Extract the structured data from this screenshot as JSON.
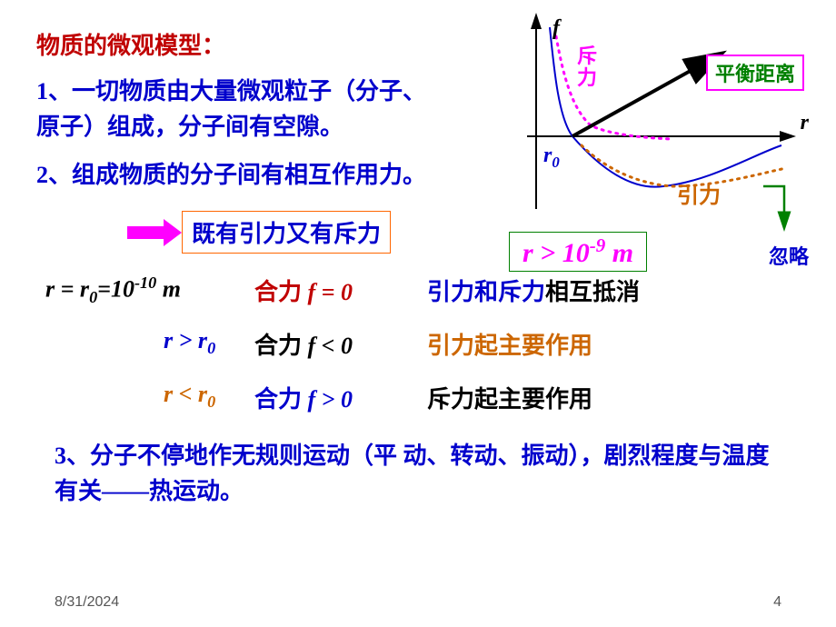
{
  "title": {
    "text": "物质的微观模型：",
    "color": "#c00000"
  },
  "point1": {
    "num": "1、",
    "numColor": "#0000cc",
    "text1": "一切物质由大量微观粒子（分子、",
    "text1Color": "#0000cc",
    "text2": "原子）组成，分子间有空隙。",
    "text2Color": "#0000cc"
  },
  "point2": {
    "num": "2、",
    "numColor": "#0000cc",
    "text": "组成物质的分子间有相互作用力。",
    "textColor": "#0000cc"
  },
  "boxText": {
    "text": "既有引力又有斥力",
    "color": "#0000cc",
    "borderColor": "#ff6600"
  },
  "rows": [
    {
      "col1Html": "r =  r<sub>0</sub>=10<sup>-10</sup> m",
      "col1Color": "#000000",
      "col2Pre": "合力 ",
      "col2PreColor": "#c00000",
      "col2Mid": "f  = 0",
      "col2MidColor": "#c00000",
      "col3a": "引力和斥力",
      "col3aColor": "#0000cc",
      "col3b": "相互抵消",
      "col3bColor": "#000000"
    },
    {
      "col1Html": "r > r<sub>0</sub>",
      "col1Color": "#0000cc",
      "col2Pre": "合力 ",
      "col2PreColor": "#000000",
      "col2Mid": "f  < 0",
      "col2MidColor": "#000000",
      "col3a": "引力起主要作用",
      "col3aColor": "#cc6600",
      "col3b": "",
      "col3bColor": "#000000"
    },
    {
      "col1Html": "r < r<sub>0</sub>",
      "col1Color": "#cc6600",
      "col2Pre": "合力 ",
      "col2PreColor": "#0000cc",
      "col2Mid": "f  > 0",
      "col2MidColor": "#0000cc",
      "col3a": "斥力起主要作用",
      "col3aColor": "#000000",
      "col3b": "",
      "col3bColor": "#000000"
    }
  ],
  "point3": {
    "num": "3、",
    "numColor": "#0000cc",
    "text": "分子不停地作无规则运动（平 动、转动、振动），剧烈程度与温度有关——热运动。",
    "textColor": "#0000cc"
  },
  "chart": {
    "fLabel": "f",
    "fColor": "#000000",
    "rLabel": "r",
    "rColor": "#000000",
    "r0Label": "r",
    "r0Sub": "0",
    "r0Color": "#0000cc",
    "repulsion": "斥力",
    "repulsionColor": "#ff00ff",
    "attraction": "引力",
    "attractionColor": "#cc6600",
    "balance": "平衡距离",
    "axisColor": "#000000",
    "curveColor": "#0000cc",
    "dottedRepColor": "#ff00ff",
    "dottedAttColor": "#cc6600",
    "arrowColor": "#000000"
  },
  "rBox": {
    "text": "r > 10",
    "sup": "-9",
    "unit": " m"
  },
  "ignore": "忽略",
  "footer": {
    "date": "8/31/2024",
    "page": "4"
  }
}
